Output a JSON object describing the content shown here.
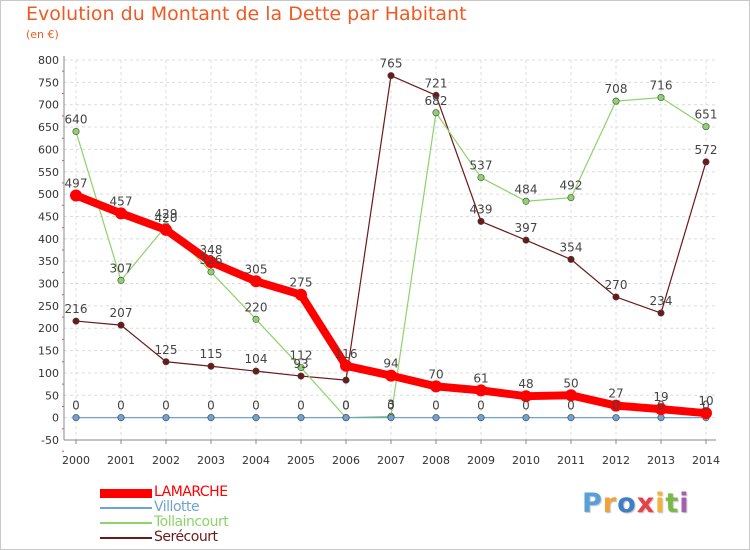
{
  "chart_data": {
    "type": "line",
    "title": "Evolution du Montant de la Dette par Habitant",
    "subtitle": "(en €)",
    "xlabel": "",
    "ylabel": "",
    "ylim": [
      -50,
      800
    ],
    "yticks": [
      "-50",
      "0",
      "50",
      "100",
      "150",
      "200",
      "250",
      "300",
      "350",
      "400",
      "450",
      "500",
      "550",
      "600",
      "650",
      "700",
      "750",
      "800"
    ],
    "categories": [
      "2000",
      "2001",
      "2002",
      "2003",
      "2004",
      "2005",
      "2006",
      "2007",
      "2008",
      "2009",
      "2010",
      "2011",
      "2012",
      "2013",
      "2014"
    ],
    "grid": true,
    "legend_position": "bottom-left",
    "series": [
      {
        "name": "Serécourt",
        "color": "#6b1a1a",
        "values": [
          216,
          207,
          125,
          115,
          104,
          93,
          84,
          765,
          721,
          439,
          397,
          354,
          270,
          234,
          572
        ],
        "labels": [
          "216",
          "207",
          "125",
          "115",
          "104",
          "93",
          "",
          "765",
          "721",
          "439",
          "397",
          "354",
          "270",
          "234",
          "572"
        ]
      },
      {
        "name": "Tollaincourt",
        "color": "#8ed26a",
        "values": [
          640,
          307,
          429,
          326,
          220,
          112,
          0,
          3,
          682,
          537,
          484,
          492,
          708,
          716,
          651
        ],
        "labels": [
          "640",
          "307",
          "429",
          "326",
          "220",
          "112",
          "0",
          "3",
          "682",
          "537",
          "484",
          "492",
          "708",
          "716",
          "651"
        ]
      },
      {
        "name": "Villotte",
        "color": "#6fa3d2",
        "values": [
          0,
          0,
          0,
          0,
          0,
          0,
          0,
          0,
          0,
          0,
          0,
          0,
          0,
          0,
          0
        ],
        "labels": [
          "0",
          "0",
          "0",
          "0",
          "0",
          "0",
          "0",
          "0",
          "0",
          "0",
          "0",
          "0",
          "0",
          "0",
          "0"
        ]
      },
      {
        "name": "LAMARCHE",
        "color": "#ff0000",
        "values": [
          497,
          457,
          420,
          348,
          305,
          275,
          116,
          94,
          70,
          61,
          48,
          50,
          27,
          19,
          10
        ],
        "labels": [
          "497",
          "457",
          "420",
          "348",
          "305",
          "275",
          "116",
          "94",
          "70",
          "61",
          "48",
          "50",
          "27",
          "19",
          "10"
        ]
      }
    ],
    "legend": [
      {
        "name": "LAMARCHE",
        "color": "#ff0000"
      },
      {
        "name": "Villotte",
        "color": "#6fa3d2"
      },
      {
        "name": "Tollaincourt",
        "color": "#8ed26a"
      },
      {
        "name": "Serécourt",
        "color": "#6b1a1a"
      }
    ]
  },
  "brand": {
    "letters": [
      "P",
      "r",
      "o",
      "x",
      "i",
      "t",
      "i"
    ],
    "colors": [
      "#5aa0d8",
      "#f2a23a",
      "#3f7fc8",
      "#e9404a",
      "#f2b33a",
      "#7ab848",
      "#a55fb0"
    ]
  }
}
